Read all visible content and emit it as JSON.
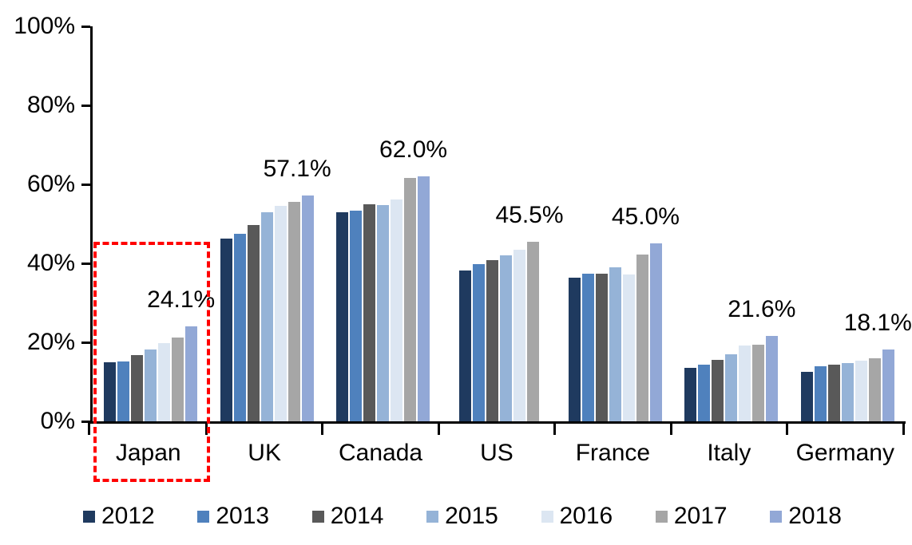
{
  "chart_data": {
    "type": "bar",
    "title": "",
    "xlabel": "",
    "ylabel": "",
    "categories": [
      "Japan",
      "UK",
      "Canada",
      "US",
      "France",
      "Italy",
      "Germany"
    ],
    "series": [
      {
        "name": "2012",
        "color": "#1F3A5F",
        "values": [
          15.0,
          46.2,
          53.0,
          38.2,
          36.3,
          13.5,
          12.6
        ]
      },
      {
        "name": "2013",
        "color": "#4F81BD",
        "values": [
          15.1,
          47.4,
          53.3,
          39.9,
          37.4,
          14.3,
          14.0
        ]
      },
      {
        "name": "2014",
        "color": "#595959",
        "values": [
          16.8,
          49.7,
          54.9,
          40.8,
          37.3,
          15.5,
          14.4
        ]
      },
      {
        "name": "2015",
        "color": "#95B3D7",
        "values": [
          18.2,
          53.0,
          54.7,
          42.0,
          39.0,
          17.0,
          14.7
        ]
      },
      {
        "name": "2016",
        "color": "#DCE6F2",
        "values": [
          19.9,
          54.5,
          56.1,
          43.4,
          37.2,
          19.1,
          15.3
        ]
      },
      {
        "name": "2017",
        "color": "#A6A6A6",
        "values": [
          21.2,
          55.6,
          61.7,
          45.5,
          42.2,
          19.3,
          16.0
        ]
      },
      {
        "name": "2018",
        "color": "#92A8D6",
        "values": [
          24.1,
          57.1,
          62.0,
          null,
          45.0,
          21.6,
          18.1
        ]
      }
    ],
    "group_value_labels": [
      "24.1%",
      "57.1%",
      "62.0%",
      "45.5%",
      "45.0%",
      "21.6%",
      "18.1%"
    ],
    "y_ticks": [
      "0%",
      "20%",
      "40%",
      "60%",
      "80%",
      "100%"
    ],
    "ylim": [
      0,
      100
    ],
    "grid": false,
    "legend_position": "bottom",
    "highlight": {
      "category": "Japan",
      "shape": "dashed-rectangle",
      "color": "#FF0000"
    }
  }
}
